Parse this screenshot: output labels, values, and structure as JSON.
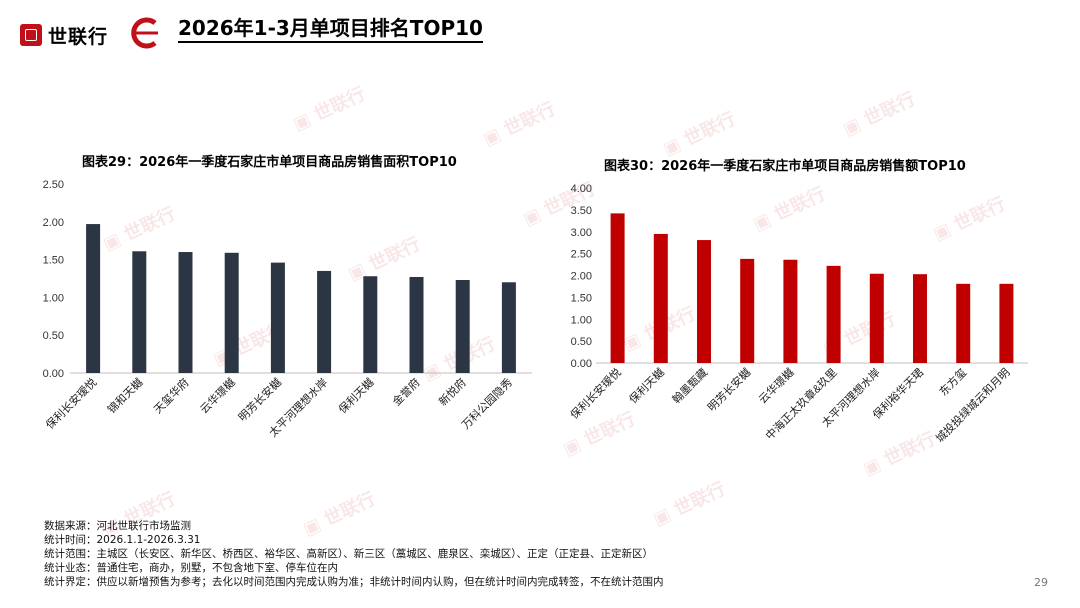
{
  "header": {
    "logo_text": "世联行",
    "title": "2026年1-3月单项目排名TOP10"
  },
  "watermark": "世联行",
  "charts": [
    {
      "type": "bar",
      "title": "图表29：2026年一季度石家庄市单项目商品房销售面积TOP10",
      "categories": [
        "保利长安瑷悦",
        "锦和天樾",
        "天玺华府",
        "云华璟樾",
        "明芳长安樾",
        "太平河理想水岸",
        "保利天樾",
        "金誉府",
        "新悦府",
        "万科公园隐秀"
      ],
      "values": [
        1.97,
        1.61,
        1.6,
        1.59,
        1.46,
        1.35,
        1.28,
        1.27,
        1.23,
        1.2
      ],
      "ylim": [
        0,
        2.5
      ],
      "yticks": [
        "0.00",
        "0.50",
        "1.00",
        "1.50",
        "2.00",
        "2.50"
      ],
      "color": "#2b3544"
    },
    {
      "type": "bar",
      "title": "图表30：2026年一季度石家庄市单项目商品房销售额TOP10",
      "categories": [
        "保利长安瑷悦",
        "保利天樾",
        "翰墨甄藏",
        "明芳长安樾",
        "云华璟樾",
        "中海正太玖章&玖里",
        "太平河理想水岸",
        "保利裕华天珺",
        "东方玺",
        "城投投绿城云和月明"
      ],
      "values": [
        3.42,
        2.95,
        2.81,
        2.38,
        2.36,
        2.22,
        2.04,
        2.03,
        1.81,
        1.81
      ],
      "ylim": [
        0,
        4.0
      ],
      "yticks": [
        "0.00",
        "0.50",
        "1.00",
        "1.50",
        "2.00",
        "2.50",
        "3.00",
        "3.50",
        "4.00"
      ],
      "color": "#c00000"
    }
  ],
  "footer": {
    "lines": [
      "数据来源：河北世联行市场监测",
      "统计时间：2026.1.1-2026.3.31",
      "统计范围：主城区（长安区、新华区、桥西区、裕华区、高新区）、新三区（藁城区、鹿泉区、栾城区）、正定（正定县、正定新区）",
      "统计业态：普通住宅，商办，别墅，不包含地下室、停车位在内",
      "统计界定：供应以新增预售为参考；去化以时间范围内完成认购为准；非统计时间内认购，但在统计时间内完成转签，不在统计范围内"
    ]
  },
  "page_number": "29"
}
